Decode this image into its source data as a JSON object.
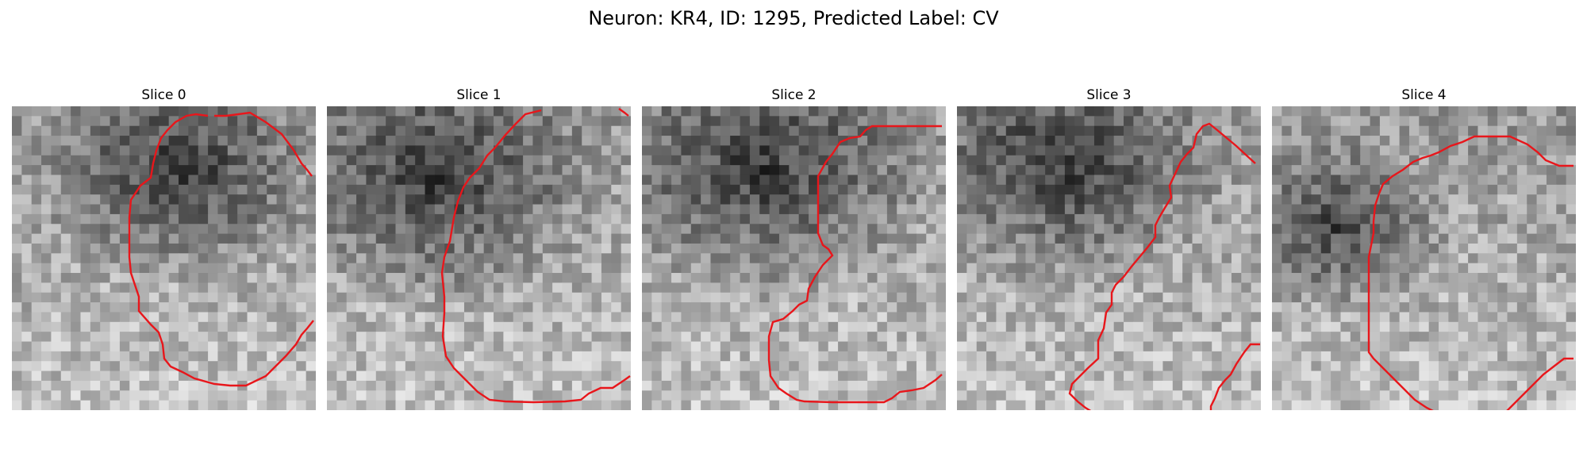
{
  "figure": {
    "title": "Neuron: KR4, ID: 1295, Predicted Label: CV"
  },
  "slices": [
    {
      "label": "Slice 0",
      "seed": 11,
      "dark_center": [
        0.55,
        0.22
      ],
      "dark_radius": 0.38
    },
    {
      "label": "Slice 1",
      "seed": 23,
      "dark_center": [
        0.35,
        0.25
      ],
      "dark_radius": 0.45
    },
    {
      "label": "Slice 2",
      "seed": 37,
      "dark_center": [
        0.4,
        0.22
      ],
      "dark_radius": 0.45
    },
    {
      "label": "Slice 3",
      "seed": 51,
      "dark_center": [
        0.35,
        0.2
      ],
      "dark_radius": 0.42
    },
    {
      "label": "Slice 4",
      "seed": 67,
      "dark_center": [
        0.22,
        0.4
      ],
      "dark_radius": 0.3
    }
  ],
  "colors": {
    "contour": "#e8161b",
    "background": "#ffffff"
  }
}
